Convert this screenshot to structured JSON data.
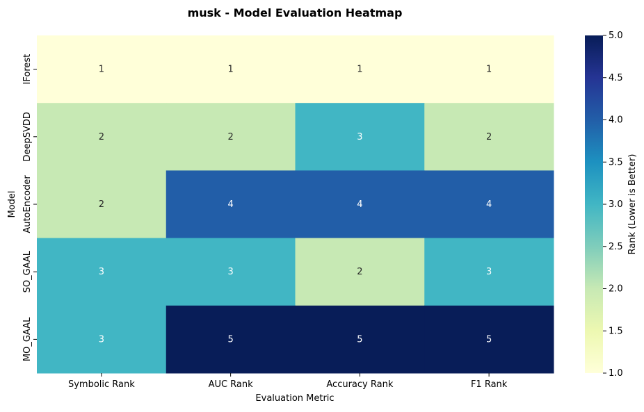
{
  "chart_data": {
    "type": "heatmap",
    "title": "musk - Model Evaluation Heatmap",
    "xlabel": "Evaluation Metric",
    "ylabel": "Model",
    "x_categories": [
      "Symbolic Rank",
      "AUC Rank",
      "Accuracy Rank",
      "F1 Rank"
    ],
    "y_categories": [
      "IForest",
      "DeepSVDD",
      "AutoEncoder",
      "SO_GAAL",
      "MO_GAAL"
    ],
    "values": [
      [
        1,
        1,
        1,
        1
      ],
      [
        2,
        2,
        3,
        2
      ],
      [
        2,
        4,
        4,
        4
      ],
      [
        3,
        3,
        2,
        3
      ],
      [
        3,
        5,
        5,
        5
      ]
    ],
    "colorbar": {
      "label": "Rank (Lower is Better)",
      "range": [
        1.0,
        5.0
      ],
      "ticks": [
        "1.0",
        "1.5",
        "2.0",
        "2.5",
        "3.0",
        "3.5",
        "4.0",
        "4.5",
        "5.0"
      ],
      "colormap": "YlGnBu"
    },
    "cell_colors": {
      "1": "#ffffd9",
      "2": "#c7e9b4",
      "3": "#41b6c4",
      "4": "#225ea8",
      "5": "#081d58"
    },
    "annotations": true
  }
}
